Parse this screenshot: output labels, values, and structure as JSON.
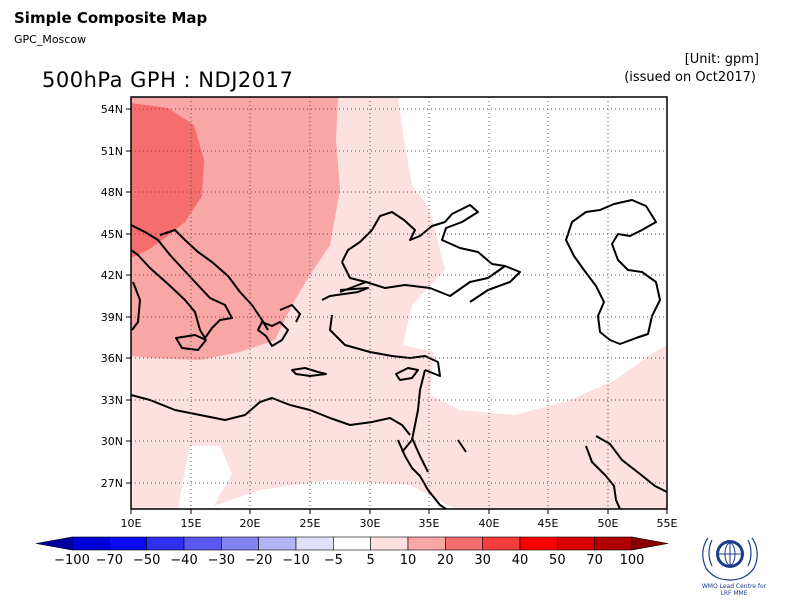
{
  "header": {
    "title": "Simple Composite Map",
    "source": "GPC_Moscow",
    "map_title": "500hPa GPH : NDJ2017",
    "unit": "[Unit: gpm]",
    "issued": "(issued on Oct2017)"
  },
  "map": {
    "lon_range": [
      10,
      55
    ],
    "lat_range": [
      25,
      55
    ],
    "x_ticks": [
      "10E",
      "15E",
      "20E",
      "25E",
      "30E",
      "35E",
      "40E",
      "45E",
      "50E",
      "55E"
    ],
    "y_ticks": [
      "54N",
      "51N",
      "48N",
      "45N",
      "42N",
      "39N",
      "36N",
      "33N",
      "30N",
      "27N"
    ],
    "grid": "dotted"
  },
  "colorbar": {
    "labels": [
      "-100",
      "-70",
      "-50",
      "-40",
      "-30",
      "-20",
      "-10",
      "-5",
      "5",
      "10",
      "20",
      "30",
      "40",
      "50",
      "70",
      "100"
    ],
    "colors": [
      "#0000a0",
      "#0000d8",
      "#0a0af5",
      "#3030f5",
      "#5858f0",
      "#8484f0",
      "#b4b4f5",
      "#e0e0fa",
      "#ffffff",
      "#fde0e0",
      "#f9a6a6",
      "#f46e6e",
      "#f63c3c",
      "#ff0000",
      "#d80000",
      "#b00000",
      "#8a0000"
    ]
  },
  "logo": {
    "line1": "WMO Lead Centre for",
    "line2": "LRF MME"
  }
}
